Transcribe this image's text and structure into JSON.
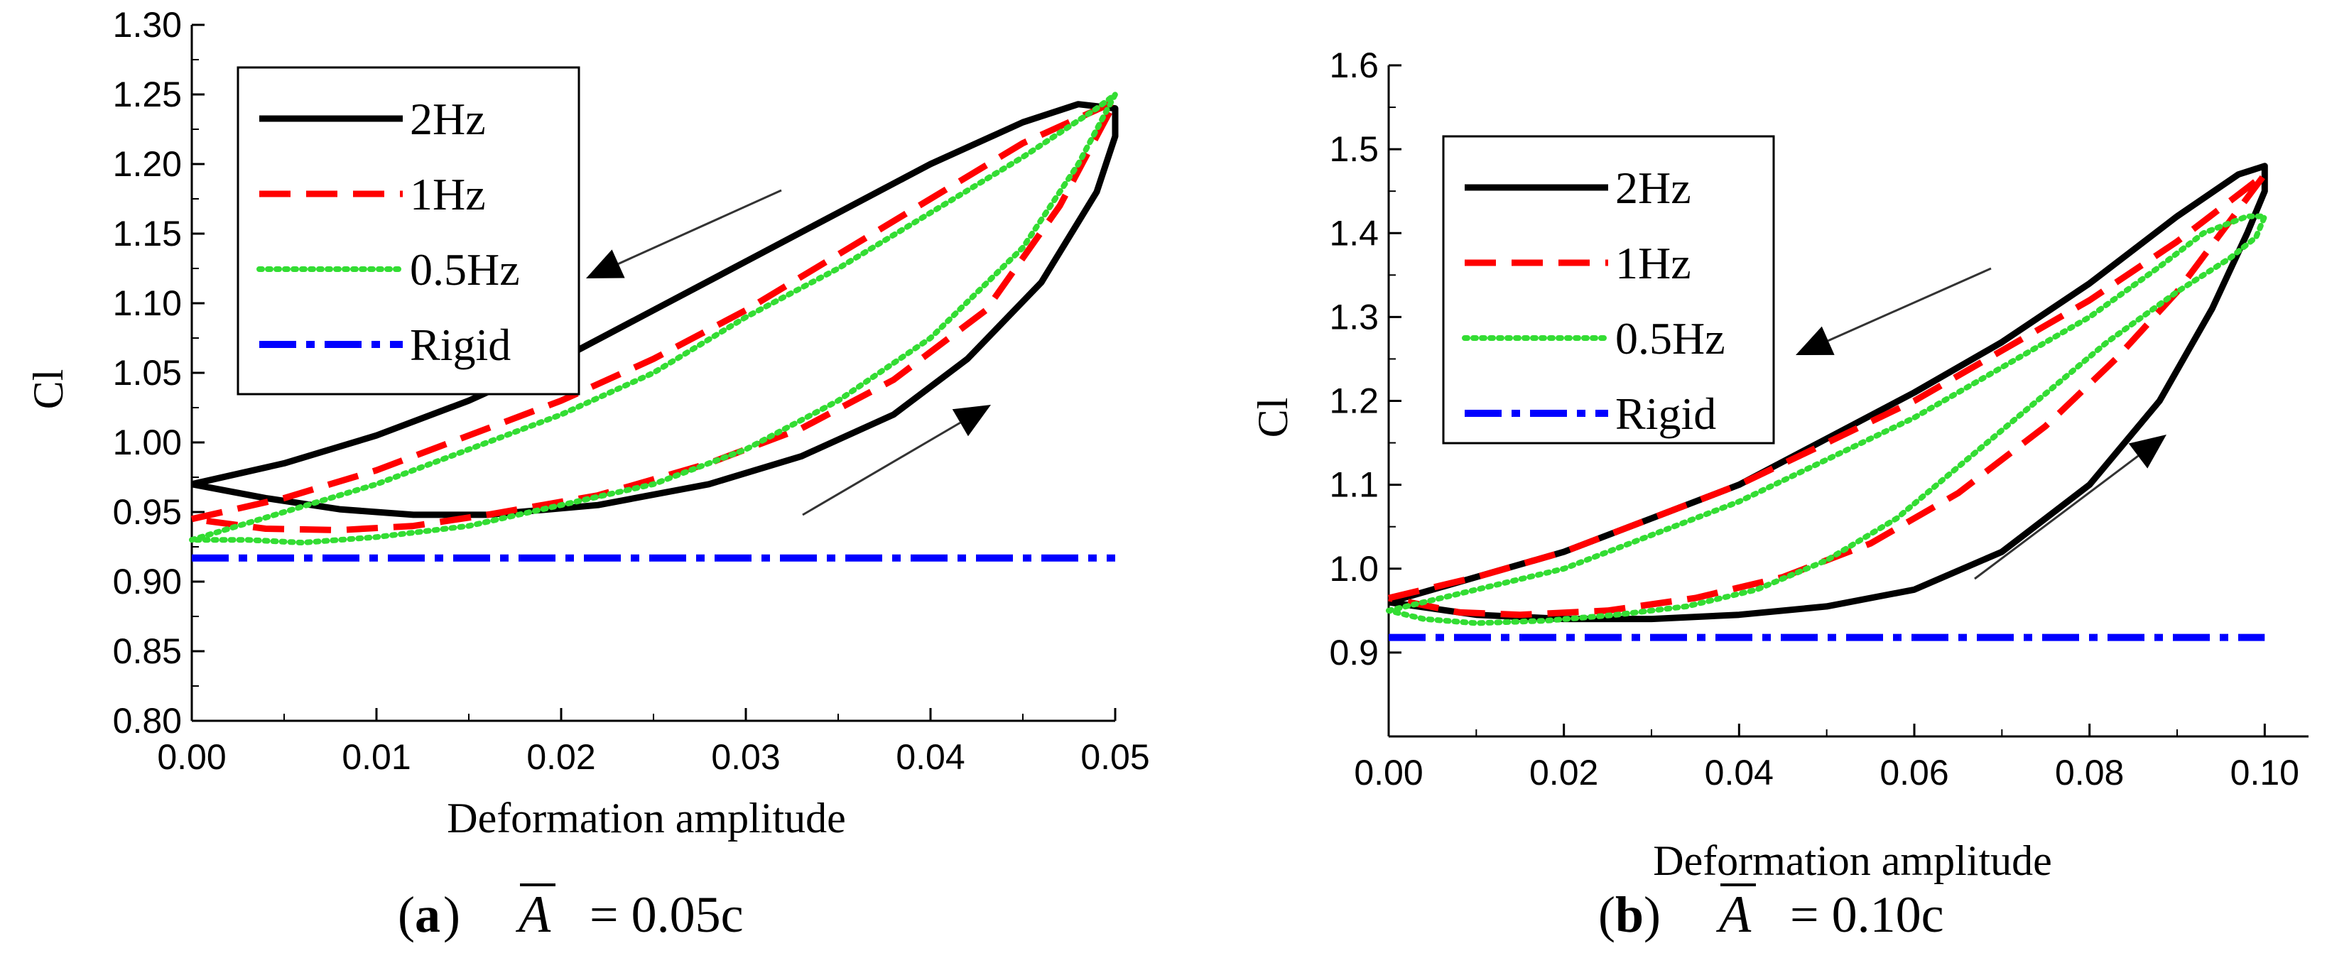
{
  "chart_data": [
    {
      "type": "line",
      "panel_letter": "a",
      "caption_symbol": "A",
      "caption_value": "= 0.05c",
      "xlabel": "Deformation amplitude",
      "ylabel": "Cl",
      "xlim": [
        0,
        0.05
      ],
      "ylim": [
        0.8,
        1.3
      ],
      "xticks": [
        0.0,
        0.01,
        0.02,
        0.03,
        0.04,
        0.05
      ],
      "xtick_labels": [
        "0.00",
        "0.01",
        "0.02",
        "0.03",
        "0.04",
        "0.05"
      ],
      "yticks": [
        0.8,
        0.85,
        0.9,
        0.95,
        1.0,
        1.05,
        1.1,
        1.15,
        1.2,
        1.25,
        1.3
      ],
      "ytick_labels": [
        "0.80",
        "0.85",
        "0.90",
        "0.95",
        "1.00",
        "1.05",
        "1.10",
        "1.15",
        "1.20",
        "1.25",
        "1.30"
      ],
      "legend": [
        "2Hz",
        "1Hz",
        "0.5Hz",
        "Rigid"
      ],
      "series": [
        {
          "name": "2Hz",
          "color": "#000000",
          "dash": "solid",
          "x": [
            0,
            0.005,
            0.01,
            0.015,
            0.02,
            0.025,
            0.03,
            0.035,
            0.04,
            0.045,
            0.048,
            0.05,
            0.05,
            0.049,
            0.046,
            0.042,
            0.038,
            0.033,
            0.028,
            0.022,
            0.016,
            0.012,
            0.008,
            0.004,
            0
          ],
          "y": [
            0.97,
            0.985,
            1.005,
            1.03,
            1.06,
            1.095,
            1.13,
            1.165,
            1.2,
            1.23,
            1.243,
            1.24,
            1.22,
            1.18,
            1.115,
            1.06,
            1.02,
            0.99,
            0.97,
            0.955,
            0.948,
            0.948,
            0.952,
            0.96,
            0.97
          ]
        },
        {
          "name": "1Hz",
          "color": "#ff0000",
          "dash": "long-dash",
          "x": [
            0,
            0.005,
            0.01,
            0.015,
            0.02,
            0.025,
            0.03,
            0.035,
            0.04,
            0.045,
            0.05,
            0.05,
            0.047,
            0.043,
            0.038,
            0.033,
            0.028,
            0.022,
            0.016,
            0.012,
            0.008,
            0.004,
            0
          ],
          "y": [
            0.945,
            0.96,
            0.98,
            1.005,
            1.03,
            1.06,
            1.095,
            1.135,
            1.175,
            1.215,
            1.245,
            1.245,
            1.17,
            1.095,
            1.045,
            1.01,
            0.985,
            0.962,
            0.948,
            0.94,
            0.937,
            0.938,
            0.945
          ]
        },
        {
          "name": "0.5Hz",
          "color": "#33dd33",
          "dash": "dotted",
          "x": [
            0,
            0.005,
            0.01,
            0.015,
            0.02,
            0.025,
            0.03,
            0.035,
            0.04,
            0.045,
            0.049,
            0.05,
            0.048,
            0.045,
            0.04,
            0.035,
            0.03,
            0.025,
            0.02,
            0.015,
            0.01,
            0.006,
            0.003,
            0
          ],
          "y": [
            0.93,
            0.95,
            0.97,
            0.995,
            1.02,
            1.05,
            1.09,
            1.125,
            1.165,
            1.205,
            1.24,
            1.25,
            1.2,
            1.14,
            1.075,
            1.03,
            0.995,
            0.97,
            0.955,
            0.94,
            0.932,
            0.928,
            0.93,
            0.93
          ]
        },
        {
          "name": "Rigid",
          "color": "#0000ff",
          "dash": "dash-dot",
          "x": [
            0,
            0.05
          ],
          "y": [
            0.917,
            0.917
          ]
        }
      ]
    },
    {
      "type": "line",
      "panel_letter": "b",
      "caption_symbol": "A",
      "caption_value": "= 0.10c",
      "xlabel": "Deformation amplitude",
      "ylabel": "Cl",
      "xlim": [
        0,
        0.105
      ],
      "ylim": [
        0.8,
        1.6
      ],
      "xticks": [
        0.0,
        0.02,
        0.04,
        0.06,
        0.08,
        0.1
      ],
      "xtick_labels": [
        "0.00",
        "0.02",
        "0.04",
        "0.06",
        "0.08",
        "0.10"
      ],
      "yticks": [
        0.9,
        1.0,
        1.1,
        1.2,
        1.3,
        1.4,
        1.5,
        1.6
      ],
      "ytick_labels": [
        "0.9",
        "1.0",
        "1.1",
        "1.2",
        "1.3",
        "1.4",
        "1.5",
        "1.6"
      ],
      "legend": [
        "2Hz",
        "1Hz",
        "0.5Hz",
        "Rigid"
      ],
      "series": [
        {
          "name": "2Hz",
          "color": "#000000",
          "dash": "solid",
          "x": [
            0,
            0.01,
            0.02,
            0.03,
            0.04,
            0.05,
            0.06,
            0.07,
            0.08,
            0.09,
            0.097,
            0.1,
            0.1,
            0.098,
            0.094,
            0.088,
            0.08,
            0.07,
            0.06,
            0.05,
            0.04,
            0.03,
            0.02,
            0.01,
            0
          ],
          "y": [
            0.96,
            0.99,
            1.02,
            1.06,
            1.1,
            1.155,
            1.21,
            1.27,
            1.34,
            1.42,
            1.47,
            1.48,
            1.45,
            1.4,
            1.31,
            1.2,
            1.1,
            1.02,
            0.975,
            0.955,
            0.945,
            0.94,
            0.94,
            0.945,
            0.96
          ]
        },
        {
          "name": "1Hz",
          "color": "#ff0000",
          "dash": "long-dash",
          "x": [
            0,
            0.01,
            0.02,
            0.03,
            0.04,
            0.05,
            0.06,
            0.07,
            0.08,
            0.09,
            0.1,
            0.1,
            0.095,
            0.09,
            0.083,
            0.075,
            0.065,
            0.055,
            0.045,
            0.035,
            0.025,
            0.015,
            0.008,
            0
          ],
          "y": [
            0.965,
            0.99,
            1.02,
            1.06,
            1.1,
            1.15,
            1.2,
            1.26,
            1.32,
            1.39,
            1.47,
            1.47,
            1.4,
            1.33,
            1.25,
            1.17,
            1.09,
            1.03,
            0.99,
            0.965,
            0.95,
            0.945,
            0.948,
            0.965
          ]
        },
        {
          "name": "0.5Hz",
          "color": "#33dd33",
          "dash": "dotted",
          "x": [
            0,
            0.01,
            0.02,
            0.03,
            0.04,
            0.05,
            0.06,
            0.07,
            0.08,
            0.088,
            0.093,
            0.098,
            0.1,
            0.099,
            0.096,
            0.09,
            0.082,
            0.074,
            0.066,
            0.058,
            0.05,
            0.042,
            0.034,
            0.026,
            0.018,
            0.01,
            0.004,
            0
          ],
          "y": [
            0.95,
            0.975,
            1.0,
            1.04,
            1.08,
            1.13,
            1.18,
            1.24,
            1.3,
            1.36,
            1.4,
            1.42,
            1.42,
            1.395,
            1.37,
            1.33,
            1.27,
            1.2,
            1.13,
            1.06,
            1.01,
            0.975,
            0.955,
            0.945,
            0.938,
            0.935,
            0.94,
            0.95
          ]
        },
        {
          "name": "Rigid",
          "color": "#0000ff",
          "dash": "dash-dot",
          "x": [
            0,
            0.1
          ],
          "y": [
            0.918,
            0.918
          ]
        }
      ]
    }
  ]
}
